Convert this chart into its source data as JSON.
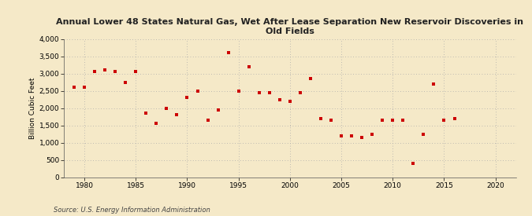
{
  "title": "Annual Lower 48 States Natural Gas, Wet After Lease Separation New Reservoir Discoveries in\nOld Fields",
  "ylabel": "Billion Cubic Feet",
  "source": "Source: U.S. Energy Information Administration",
  "background_color": "#f5e9c8",
  "marker_color": "#cc0000",
  "xlim": [
    1978,
    2022
  ],
  "ylim": [
    0,
    4000
  ],
  "yticks": [
    0,
    500,
    1000,
    1500,
    2000,
    2500,
    3000,
    3500,
    4000
  ],
  "xticks": [
    1980,
    1985,
    1990,
    1995,
    2000,
    2005,
    2010,
    2015,
    2020
  ],
  "years": [
    1979,
    1980,
    1981,
    1982,
    1983,
    1984,
    1985,
    1986,
    1987,
    1988,
    1989,
    1990,
    1991,
    1992,
    1993,
    1994,
    1995,
    1996,
    1997,
    1998,
    1999,
    2000,
    2001,
    2002,
    2003,
    2004,
    2005,
    2006,
    2007,
    2008,
    2009,
    2010,
    2011,
    2012,
    2013,
    2014,
    2015,
    2016
  ],
  "values": [
    2600,
    2600,
    3050,
    3100,
    3050,
    2750,
    3050,
    1850,
    1550,
    2000,
    1800,
    2300,
    2500,
    1650,
    1950,
    3600,
    2500,
    3200,
    2450,
    2450,
    2250,
    2200,
    2450,
    2850,
    1700,
    1650,
    1200,
    1200,
    1150,
    1250,
    1650,
    1650,
    1650,
    400,
    1250,
    2700,
    1650,
    1700
  ]
}
